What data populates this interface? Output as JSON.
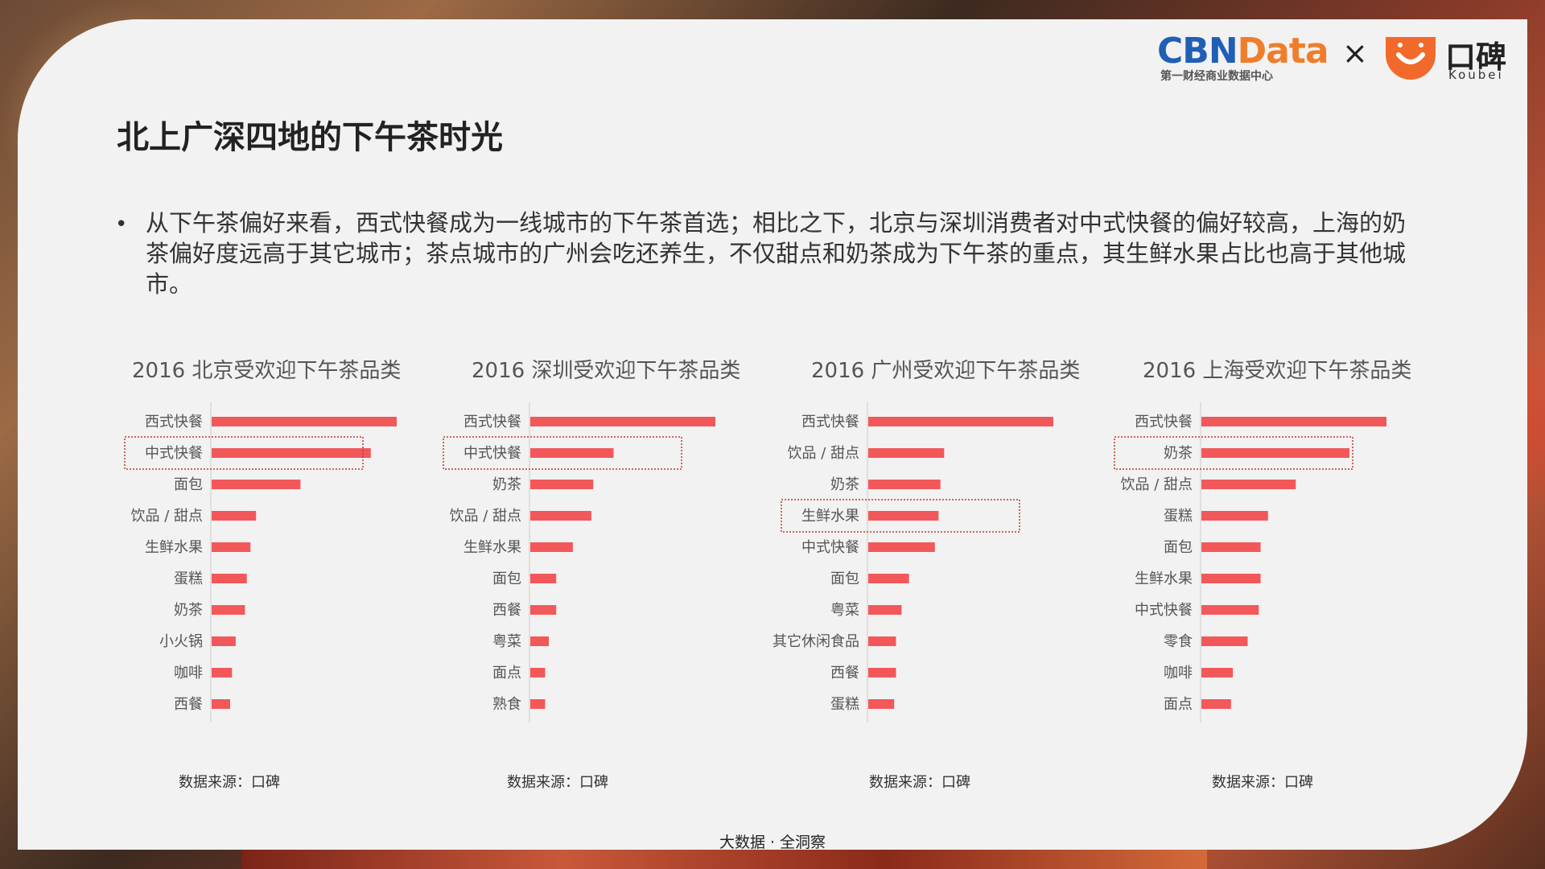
{
  "logos": {
    "cbn_part1": "CBN",
    "cbn_part2": "Data",
    "cbn_subtitle": "第一财经商业数据中心",
    "times": "×",
    "koubei": "口碑",
    "koubei_sub": "Koubei"
  },
  "title": "北上广深四地的下午茶时光",
  "bullet": "从下午茶偏好来看，西式快餐成为一线城市的下午茶首选；相比之下，北京与深圳消费者对中式快餐的偏好较高，上海的奶茶偏好度远高于其它城市；茶点城市的广州会吃还养生，不仅甜点和奶茶成为下午茶的重点，其生鲜水果占比也高于其他城市。",
  "footer": "大数据 · 全洞察",
  "colors": {
    "bar": "#f2585a",
    "highlight_border": "#c0392b",
    "axis": "#cccccc"
  },
  "chart_data": [
    {
      "type": "bar",
      "orientation": "horizontal",
      "title": "2016 北京受欢迎下午茶品类",
      "source": "数据来源：口碑",
      "categories": [
        "西式快餐",
        "中式快餐",
        "面包",
        "饮品 / 甜点",
        "生鲜水果",
        "蛋糕",
        "奶茶",
        "小火锅",
        "咖啡",
        "西餐"
      ],
      "values": [
        100,
        86,
        48,
        24,
        21,
        19,
        18,
        13,
        11,
        10
      ],
      "highlight": [
        1
      ],
      "grid": false
    },
    {
      "type": "bar",
      "orientation": "horizontal",
      "title": "2016 深圳受欢迎下午茶品类",
      "source": "数据来源：口碑",
      "categories": [
        "西式快餐",
        "中式快餐",
        "奶茶",
        "饮品 / 甜点",
        "生鲜水果",
        "面包",
        "西餐",
        "粤菜",
        "面点",
        "熟食"
      ],
      "values": [
        100,
        45,
        34,
        33,
        23,
        14,
        14,
        10,
        8,
        8
      ],
      "highlight": [
        1
      ],
      "grid": false
    },
    {
      "type": "bar",
      "orientation": "horizontal",
      "title": "2016 广州受欢迎下午茶品类",
      "source": "数据来源：口碑",
      "categories": [
        "西式快餐",
        "饮品 / 甜点",
        "奶茶",
        "生鲜水果",
        "中式快餐",
        "面包",
        "粤菜",
        "其它休闲食品",
        "西餐",
        "蛋糕"
      ],
      "values": [
        100,
        41,
        39,
        38,
        36,
        22,
        18,
        15,
        15,
        14
      ],
      "highlight": [
        3
      ],
      "grid": false
    },
    {
      "type": "bar",
      "orientation": "horizontal",
      "title": "2016 上海受欢迎下午茶品类",
      "source": "数据来源：口碑",
      "categories": [
        "西式快餐",
        "奶茶",
        "饮品 / 甜点",
        "蛋糕",
        "面包",
        "生鲜水果",
        "中式快餐",
        "零食",
        "咖啡",
        "面点"
      ],
      "values": [
        100,
        80,
        51,
        36,
        32,
        32,
        31,
        25,
        17,
        16
      ],
      "highlight": [
        1
      ],
      "grid": false
    }
  ]
}
